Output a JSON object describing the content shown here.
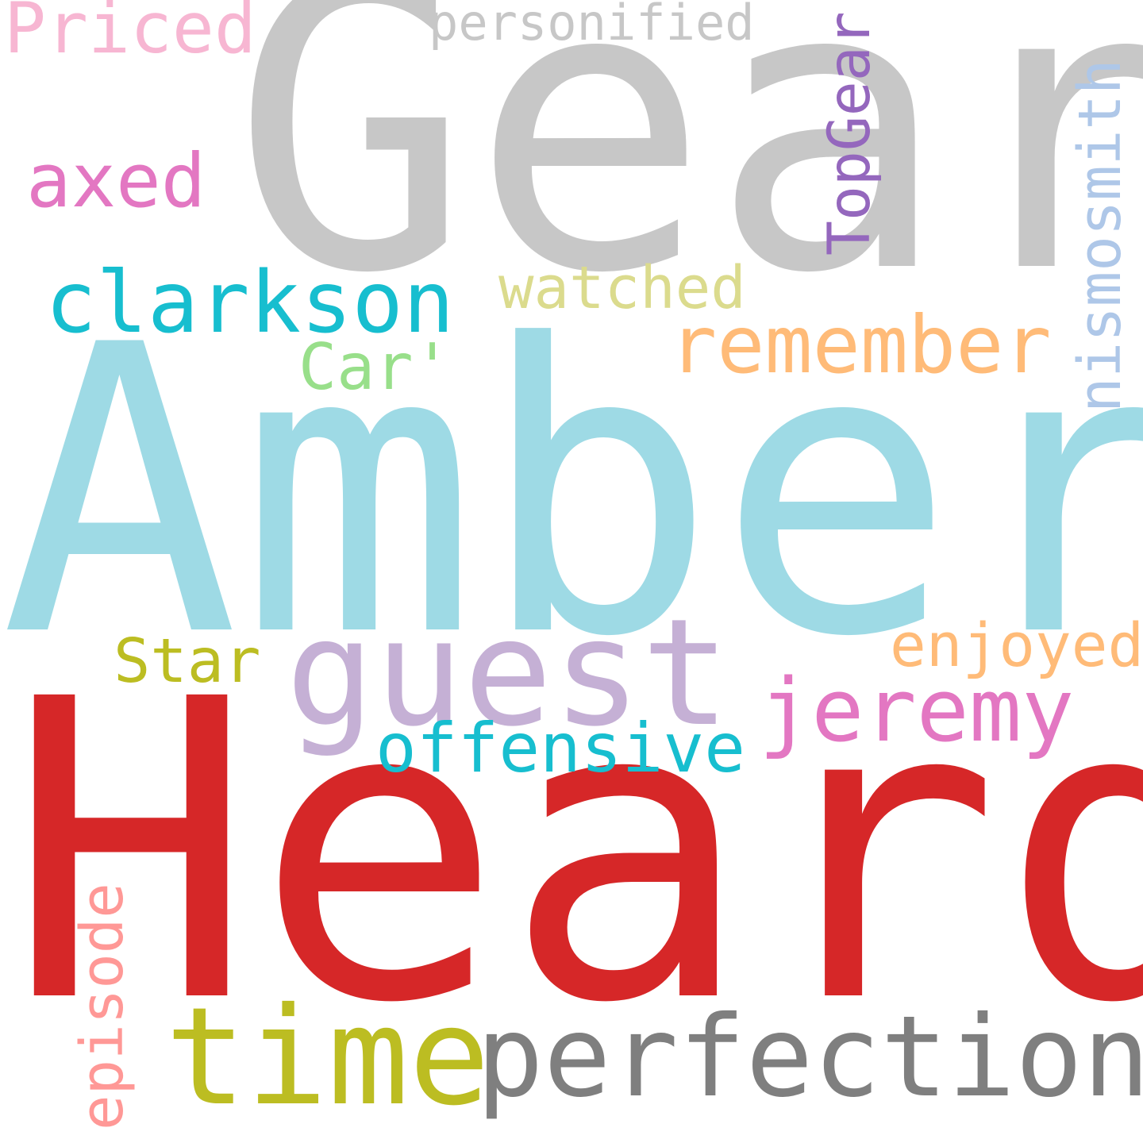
{
  "words": {
    "gear": {
      "text": "Gear",
      "color": "#c7c7c7"
    },
    "amber": {
      "text": "Amber",
      "color": "#9edae5"
    },
    "heard": {
      "text": "Heard",
      "color": "#d62728"
    },
    "priced": {
      "text": "Priced",
      "color": "#f7b6d2"
    },
    "personified": {
      "text": "personified",
      "color": "#c7c7c7"
    },
    "axed": {
      "text": "axed",
      "color": "#e377c2"
    },
    "clarkson": {
      "text": "clarkson",
      "color": "#17becf"
    },
    "watched": {
      "text": "watched",
      "color": "#dbdb8d"
    },
    "remember": {
      "text": "remember",
      "color": "#ffbb78"
    },
    "car": {
      "text": "Car'",
      "color": "#98df8a"
    },
    "star": {
      "text": "Star",
      "color": "#bcbd22"
    },
    "guest": {
      "text": "guest",
      "color": "#c5b0d5"
    },
    "enjoyed": {
      "text": "enjoyed",
      "color": "#ffbb78"
    },
    "jeremy": {
      "text": "jeremy",
      "color": "#e377c2"
    },
    "offensive": {
      "text": "offensive",
      "color": "#17becf"
    },
    "time": {
      "text": "time",
      "color": "#bcbd22"
    },
    "perfection": {
      "text": "perfection",
      "color": "#7f7f7f"
    },
    "topgear": {
      "text": "TopGear",
      "color": "#9467bd"
    },
    "nismosmith": {
      "text": "nismosmith",
      "color": "#aec7e8"
    },
    "episode": {
      "text": "episode",
      "color": "#ff9896"
    }
  }
}
